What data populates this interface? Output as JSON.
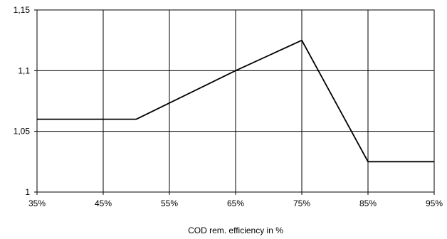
{
  "chart_data": {
    "type": "line",
    "title": "",
    "xlabel": "COD rem. efficiency in %",
    "ylabel": "",
    "x_tick_labels": [
      "35%",
      "45%",
      "55%",
      "65%",
      "75%",
      "85%",
      "95%"
    ],
    "y_tick_labels": [
      "1",
      "1,05",
      "1,1",
      "1,15"
    ],
    "xlim": [
      35,
      95
    ],
    "ylim": [
      1.0,
      1.15
    ],
    "x_ticks": [
      35,
      45,
      55,
      65,
      75,
      85,
      95
    ],
    "y_ticks": [
      1.0,
      1.05,
      1.1,
      1.15
    ],
    "grid": true,
    "legend": "none",
    "series": [
      {
        "x": [
          35,
          50,
          65,
          75,
          85,
          95
        ],
        "y": [
          1.06,
          1.06,
          1.1,
          1.125,
          1.025,
          1.025
        ],
        "color": "#000000"
      }
    ]
  }
}
